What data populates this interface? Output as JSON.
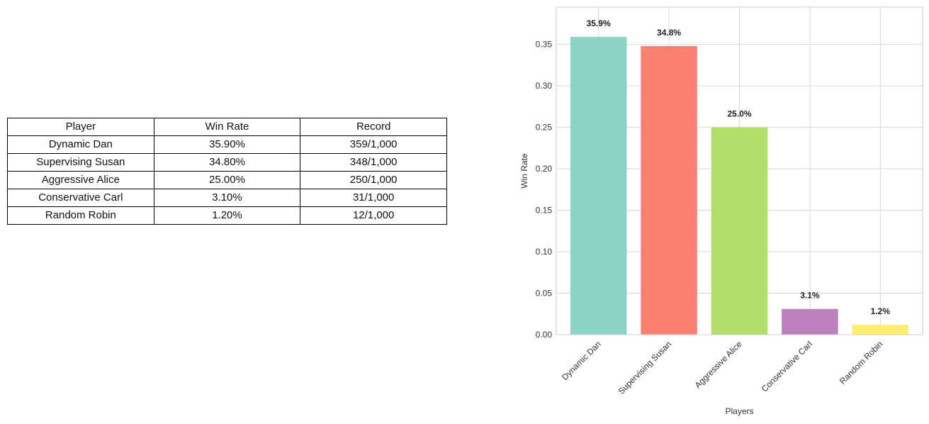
{
  "table": {
    "headers": [
      "Player",
      "Win Rate",
      "Record"
    ],
    "rows": [
      [
        "Dynamic Dan",
        "35.90%",
        "359/1,000"
      ],
      [
        "Supervising Susan",
        "34.80%",
        "348/1,000"
      ],
      [
        "Aggressive Alice",
        "25.00%",
        "250/1,000"
      ],
      [
        "Conservative Carl",
        "3.10%",
        "31/1,000"
      ],
      [
        "Random Robin",
        "1.20%",
        "12/1,000"
      ]
    ]
  },
  "chart_data": {
    "type": "bar",
    "categories": [
      "Dynamic Dan",
      "Supervising Susan",
      "Aggressive Alice",
      "Conservative Carl",
      "Random Robin"
    ],
    "values": [
      0.359,
      0.348,
      0.25,
      0.031,
      0.012
    ],
    "data_labels": [
      "35.9%",
      "34.8%",
      "25.0%",
      "3.1%",
      "1.2%"
    ],
    "colors": [
      "#8dd3c7",
      "#fb8072",
      "#b3de69",
      "#bc80bd",
      "#ffed6f"
    ],
    "xlabel": "Players",
    "ylabel": "Win Rate",
    "ylim": [
      0,
      0.395
    ],
    "yticks": [
      0.0,
      0.05,
      0.1,
      0.15,
      0.2,
      0.25,
      0.3,
      0.35
    ],
    "ytick_labels": [
      "0.00",
      "0.05",
      "0.10",
      "0.15",
      "0.20",
      "0.25",
      "0.30",
      "0.35"
    ],
    "grid": true
  }
}
